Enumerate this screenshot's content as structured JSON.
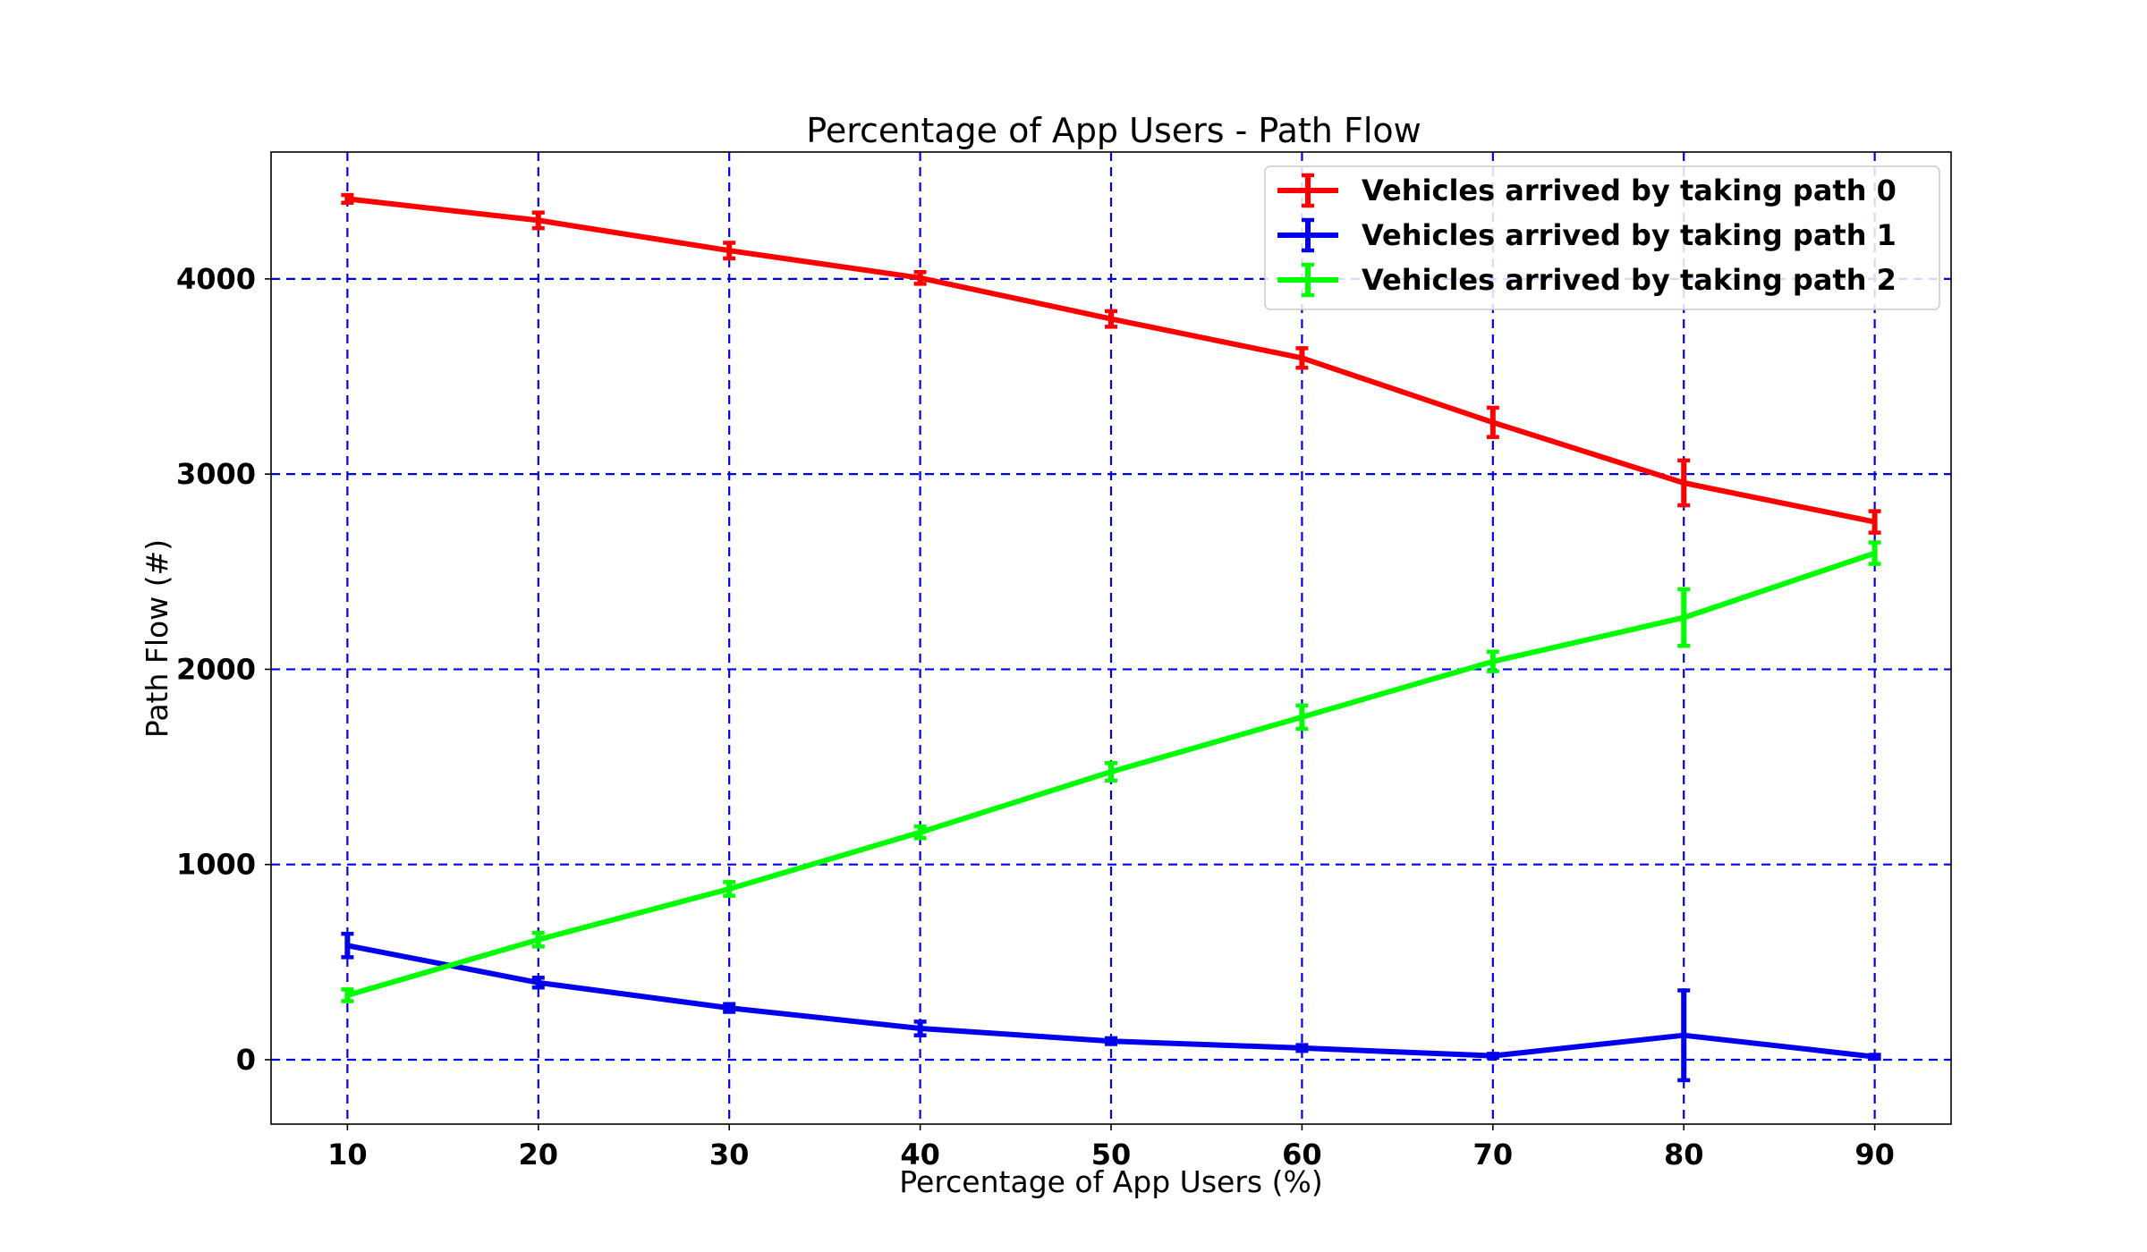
{
  "chart_data": {
    "type": "line",
    "title": "Percentage of App Users - Path Flow",
    "xlabel": "Percentage of App Users (%)",
    "ylabel": "Path Flow (#)",
    "x": [
      10,
      20,
      30,
      40,
      50,
      60,
      70,
      80,
      90
    ],
    "xticks": [
      "10",
      "20",
      "30",
      "40",
      "50",
      "60",
      "70",
      "80",
      "90"
    ],
    "yticks": [
      "0",
      "1000",
      "2000",
      "3000",
      "4000"
    ],
    "xlim": [
      6,
      94
    ],
    "ylim": [
      -330,
      4650
    ],
    "grid": true,
    "grid_color": "#0000ee",
    "legend_position": "top-right",
    "error_bars": true,
    "series": [
      {
        "name": "Vehicles arrived by taking path 0",
        "color": "#ff0000",
        "values": [
          4410,
          4300,
          4145,
          4005,
          3795,
          3595,
          3265,
          2955,
          2755
        ],
        "errors": [
          20,
          40,
          40,
          30,
          40,
          50,
          75,
          115,
          55
        ]
      },
      {
        "name": "Vehicles arrived by taking path 1",
        "color": "#0000ee",
        "values": [
          585,
          395,
          265,
          160,
          95,
          60,
          20,
          125,
          15
        ],
        "errors": [
          60,
          25,
          20,
          35,
          15,
          15,
          10,
          230,
          10
        ]
      },
      {
        "name": "Vehicles arrived by taking path 2",
        "color": "#00ff00",
        "values": [
          330,
          615,
          875,
          1165,
          1475,
          1755,
          2040,
          2265,
          2595
        ],
        "errors": [
          30,
          35,
          35,
          30,
          45,
          60,
          50,
          145,
          55
        ]
      }
    ]
  }
}
